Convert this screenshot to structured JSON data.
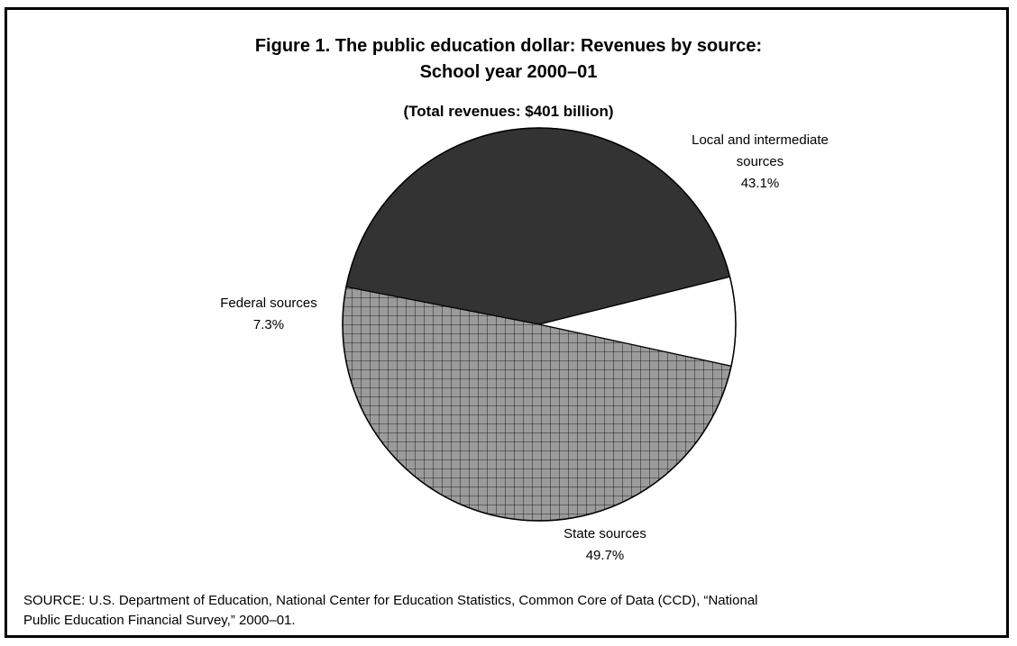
{
  "figure": {
    "title_line1": "Figure 1.  The public education dollar: Revenues by source:",
    "title_line2": "School year 2000–01",
    "subtitle": "(Total revenues: $401 billion)",
    "source_line1": "SOURCE: U.S. Department of Education, National Center for Education Statistics, Common Core of Data (CCD), “National",
    "source_line2": "Public Education Financial Survey,” 2000–01."
  },
  "chart_data": {
    "type": "pie",
    "title": "Figure 1.  The public education dollar: Revenues by source: School year 2000–01",
    "subtitle": "(Total revenues: $401 billion)",
    "slices": [
      {
        "label_lines": [
          "Local and intermediate",
          "sources"
        ],
        "label": "Local and intermediate sources",
        "value": 43.1,
        "value_text": "43.1%",
        "fill": "#333333",
        "pattern": "solid"
      },
      {
        "label_lines": [
          "State sources"
        ],
        "label": "State sources",
        "value": 49.7,
        "value_text": "49.7%",
        "fill": "#9b9b9b",
        "pattern": "grid"
      },
      {
        "label_lines": [
          "Federal sources"
        ],
        "label": "Federal sources",
        "value": 7.3,
        "value_text": "7.3%",
        "fill": "#ffffff",
        "pattern": "solid"
      }
    ],
    "units": "percent",
    "legend": "none"
  }
}
